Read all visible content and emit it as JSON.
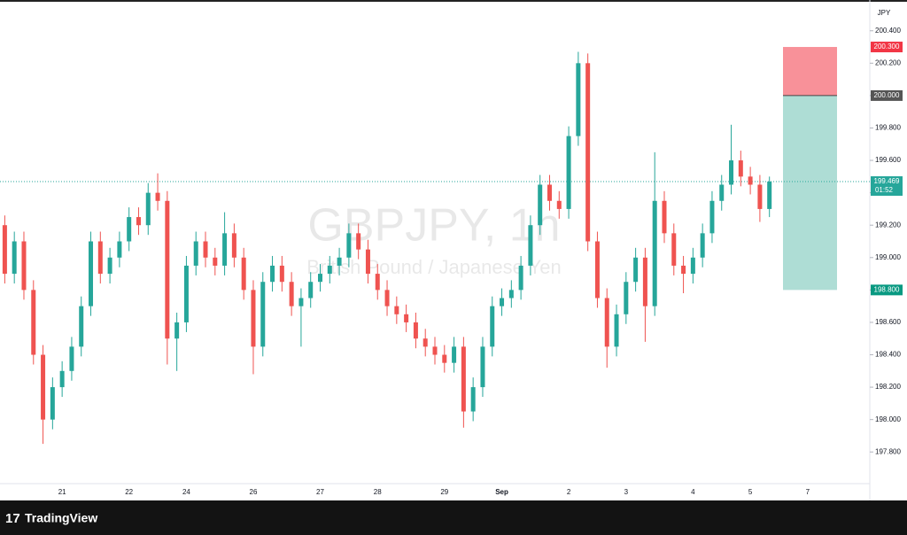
{
  "chart_data": {
    "type": "candlestick",
    "title": "GBPJPY, 1h",
    "subtitle": "British Pound / Japanese Yen",
    "currency": "JPY",
    "brand": "TradingView",
    "up_color": "#26a69a",
    "down_color": "#ef5350",
    "categories": [
      null,
      null,
      null,
      null,
      null,
      null,
      "21",
      null,
      null,
      null,
      null,
      null,
      null,
      "22",
      null,
      null,
      null,
      null,
      null,
      "24",
      null,
      null,
      null,
      null,
      null,
      null,
      "26",
      null,
      null,
      null,
      null,
      null,
      null,
      "27",
      null,
      null,
      null,
      null,
      null,
      "28",
      null,
      null,
      null,
      null,
      null,
      null,
      "29",
      null,
      null,
      null,
      null,
      null,
      "Sep",
      null,
      null,
      null,
      null,
      null,
      null,
      "2",
      null,
      null,
      null,
      null,
      null,
      "3",
      null,
      null,
      null,
      null,
      null,
      null,
      "4",
      null,
      null,
      null,
      null,
      null,
      "5",
      null,
      null,
      null,
      null,
      null,
      "7",
      null,
      null,
      null,
      null,
      null,
      null
    ],
    "open": [
      199.2,
      198.9,
      199.1,
      198.8,
      198.4,
      198.0,
      198.2,
      198.3,
      198.45,
      198.7,
      199.1,
      198.9,
      199.0,
      199.1,
      199.25,
      199.2,
      199.4,
      199.35,
      198.5,
      198.6,
      198.95,
      199.1,
      199.0,
      198.95,
      199.15,
      199.0,
      198.8,
      198.45,
      198.85,
      198.95,
      198.85,
      198.7,
      198.75,
      198.85,
      198.9,
      198.95,
      199.0,
      199.15,
      199.05,
      198.9,
      198.8,
      198.7,
      198.65,
      198.6,
      198.5,
      198.45,
      198.4,
      198.35,
      198.45,
      198.05,
      198.2,
      198.45,
      198.7,
      198.75,
      198.8,
      198.95,
      199.2,
      199.45,
      199.35,
      199.3,
      199.75,
      200.2,
      199.1,
      198.75,
      198.45,
      198.65,
      198.85,
      199.0,
      198.7,
      199.35,
      199.15,
      198.95,
      198.9,
      199.0,
      199.15,
      199.35,
      199.45,
      199.6,
      199.5,
      199.45,
      199.3,
      null,
      null,
      null,
      null,
      null,
      null,
      null,
      null,
      null,
      null
    ],
    "high": [
      199.26,
      199.16,
      199.16,
      198.86,
      198.46,
      198.26,
      198.36,
      198.51,
      198.76,
      199.16,
      199.16,
      199.06,
      199.16,
      199.31,
      199.31,
      199.46,
      199.52,
      199.41,
      198.66,
      199.01,
      199.16,
      199.16,
      199.06,
      199.28,
      199.21,
      199.06,
      198.86,
      198.91,
      199.01,
      199.01,
      198.91,
      198.81,
      198.91,
      198.96,
      199.01,
      199.06,
      199.21,
      199.21,
      199.11,
      198.96,
      198.86,
      198.76,
      198.71,
      198.66,
      198.56,
      198.51,
      198.46,
      198.51,
      198.51,
      198.26,
      198.51,
      198.76,
      198.81,
      198.86,
      199.01,
      199.26,
      199.51,
      199.51,
      199.41,
      199.81,
      200.27,
      200.26,
      199.16,
      198.81,
      198.71,
      198.91,
      199.06,
      199.06,
      199.65,
      199.41,
      199.21,
      199.01,
      199.06,
      199.21,
      199.41,
      199.51,
      199.82,
      199.66,
      199.56,
      199.51,
      199.5,
      null,
      null,
      null,
      null,
      null,
      null,
      null,
      null,
      null,
      null
    ],
    "low": [
      198.84,
      198.84,
      198.74,
      198.34,
      197.85,
      197.94,
      198.14,
      198.24,
      198.39,
      198.64,
      198.84,
      198.84,
      198.94,
      199.04,
      199.14,
      199.14,
      199.29,
      198.34,
      198.3,
      198.54,
      198.89,
      198.94,
      198.89,
      198.89,
      198.94,
      198.74,
      198.28,
      198.39,
      198.79,
      198.79,
      198.64,
      198.45,
      198.69,
      198.79,
      198.84,
      198.89,
      198.94,
      198.99,
      198.84,
      198.74,
      198.64,
      198.59,
      198.54,
      198.44,
      198.39,
      198.34,
      198.29,
      198.29,
      197.95,
      197.99,
      198.14,
      198.39,
      198.64,
      198.69,
      198.74,
      198.89,
      199.14,
      199.29,
      199.24,
      199.24,
      199.69,
      199.04,
      198.69,
      198.32,
      198.39,
      198.59,
      198.79,
      198.48,
      198.64,
      199.09,
      198.89,
      198.78,
      198.84,
      198.94,
      199.09,
      199.29,
      199.39,
      199.44,
      199.39,
      199.22,
      199.25,
      null,
      null,
      null,
      null,
      null,
      null,
      null,
      null,
      null,
      null
    ],
    "close": [
      198.9,
      199.1,
      198.8,
      198.4,
      198.0,
      198.2,
      198.3,
      198.45,
      198.7,
      199.1,
      198.9,
      199.0,
      199.1,
      199.25,
      199.2,
      199.4,
      199.35,
      198.5,
      198.6,
      198.95,
      199.1,
      199.0,
      198.95,
      199.15,
      199.0,
      198.8,
      198.45,
      198.85,
      198.95,
      198.85,
      198.7,
      198.75,
      198.85,
      198.9,
      198.95,
      199.0,
      199.15,
      199.05,
      198.9,
      198.8,
      198.7,
      198.65,
      198.6,
      198.5,
      198.45,
      198.4,
      198.35,
      198.45,
      198.05,
      198.2,
      198.45,
      198.7,
      198.75,
      198.8,
      198.95,
      199.2,
      199.45,
      199.35,
      199.3,
      199.75,
      200.2,
      199.1,
      198.75,
      198.45,
      198.65,
      198.85,
      199.0,
      198.7,
      199.35,
      199.15,
      198.95,
      198.9,
      199.0,
      199.15,
      199.35,
      199.45,
      199.6,
      199.5,
      199.45,
      199.3,
      199.469,
      null,
      null,
      null,
      null,
      null,
      null,
      null,
      null,
      null,
      null
    ],
    "ylim": [
      197.61,
      200.59
    ],
    "yticks": [
      {
        "value": 197.8,
        "label": "197.800"
      },
      {
        "value": 198.0,
        "label": "198.000"
      },
      {
        "value": 198.2,
        "label": "198.200"
      },
      {
        "value": 198.4,
        "label": "198.400"
      },
      {
        "value": 198.6,
        "label": "198.600"
      },
      {
        "value": 198.8,
        "label": "198.800"
      },
      {
        "value": 199.0,
        "label": "199.000"
      },
      {
        "value": 199.2,
        "label": "199.200"
      },
      {
        "value": 199.4,
        "label": "199.400"
      },
      {
        "value": 199.6,
        "label": "199.600"
      },
      {
        "value": 199.8,
        "label": "199.800"
      },
      {
        "value": 200.0,
        "label": "200.000"
      },
      {
        "value": 200.2,
        "label": "200.200"
      },
      {
        "value": 200.4,
        "label": "200.400"
      }
    ],
    "last_price": {
      "value": 199.469,
      "label": "199.469",
      "countdown": "01:52",
      "color": "#26a69a"
    },
    "stop_loss": {
      "value": 200.3,
      "label": "200.300",
      "color": "#f23645"
    },
    "entry": {
      "value": 200.0,
      "label": "200.000",
      "color": "#555555"
    },
    "take_profit": {
      "value": 198.8,
      "label": "198.800",
      "color": "#089981"
    }
  }
}
